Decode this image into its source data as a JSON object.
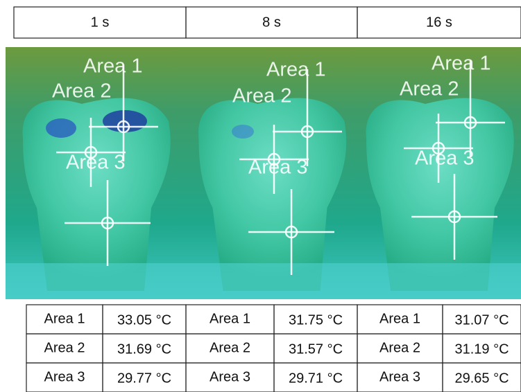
{
  "panels": [
    {
      "time": "1 s",
      "image_labels": [
        "Area 1",
        "Area 2",
        "Area 3"
      ],
      "table": [
        [
          "Area 1",
          "33.05 °C"
        ],
        [
          "Area 2",
          "31.69 °C"
        ],
        [
          "Area 3",
          "29.77 °C"
        ]
      ]
    },
    {
      "time": "8 s",
      "image_labels": [
        "Area 1",
        "Area 2",
        "Area 3"
      ],
      "table": [
        [
          "Area 1",
          "31.75 °C"
        ],
        [
          "Area 2",
          "31.57 °C"
        ],
        [
          "Area 3",
          "29.71 °C"
        ]
      ]
    },
    {
      "time": "16 s",
      "image_labels": [
        "Area 1",
        "Area 2",
        "Area 3"
      ],
      "table": [
        [
          "Area 1",
          "31.07 °C"
        ],
        [
          "Area 2",
          "31.19 °C"
        ],
        [
          "Area 3",
          "29.65 °C"
        ]
      ]
    }
  ]
}
